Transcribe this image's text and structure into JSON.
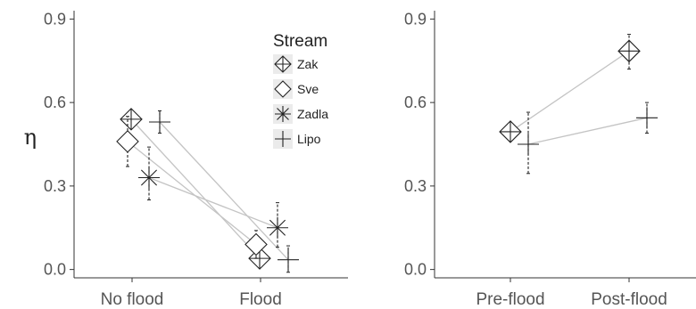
{
  "chart_data": [
    {
      "type": "scatter",
      "ylabel": "η",
      "ylim": [
        -0.03,
        0.93
      ],
      "yticks": [
        "0.0",
        "0.3",
        "0.6",
        "0.9"
      ],
      "yticks_values": [
        0.0,
        0.3,
        0.6,
        0.9
      ],
      "categories": [
        "No flood",
        "Flood"
      ],
      "grid": false,
      "legend": {
        "title": "Stream",
        "position": "inside-top-right",
        "entries": [
          {
            "label": "Zak",
            "marker": "diamond-plus"
          },
          {
            "label": "Sve",
            "marker": "diamond"
          },
          {
            "label": "Zadla",
            "marker": "asterisk"
          },
          {
            "label": "Lipo",
            "marker": "plus"
          }
        ]
      },
      "series": [
        {
          "name": "Zak",
          "marker": "diamond-plus",
          "values": [
            0.54,
            0.04
          ],
          "err_low": [
            0.51,
            0.01
          ],
          "err_high": [
            0.57,
            0.07
          ]
        },
        {
          "name": "Sve",
          "marker": "diamond",
          "values": [
            0.46,
            0.09
          ],
          "err_low": [
            0.37,
            0.04
          ],
          "err_high": [
            0.55,
            0.14
          ]
        },
        {
          "name": "Zadla",
          "marker": "asterisk",
          "values": [
            0.33,
            0.15
          ],
          "err_low": [
            0.25,
            0.08
          ],
          "err_high": [
            0.44,
            0.24
          ]
        },
        {
          "name": "Lipo",
          "marker": "plus",
          "values": [
            0.53,
            0.035
          ],
          "err_low": [
            0.49,
            -0.01
          ],
          "err_high": [
            0.57,
            0.085
          ]
        }
      ]
    },
    {
      "type": "scatter",
      "ylabel": "",
      "ylim": [
        -0.03,
        0.93
      ],
      "yticks": [
        "0.0",
        "0.3",
        "0.6",
        "0.9"
      ],
      "yticks_values": [
        0.0,
        0.3,
        0.6,
        0.9
      ],
      "categories": [
        "Pre-flood",
        "Post-flood"
      ],
      "grid": false,
      "series": [
        {
          "name": "Zak",
          "marker": "diamond-plus",
          "values": [
            0.495,
            0.785
          ],
          "err_low": [
            0.47,
            0.72
          ],
          "err_high": [
            0.52,
            0.845
          ]
        },
        {
          "name": "Lipo",
          "marker": "plus",
          "values": [
            0.45,
            0.545
          ],
          "err_low": [
            0.345,
            0.49
          ],
          "err_high": [
            0.565,
            0.6
          ]
        }
      ]
    }
  ]
}
